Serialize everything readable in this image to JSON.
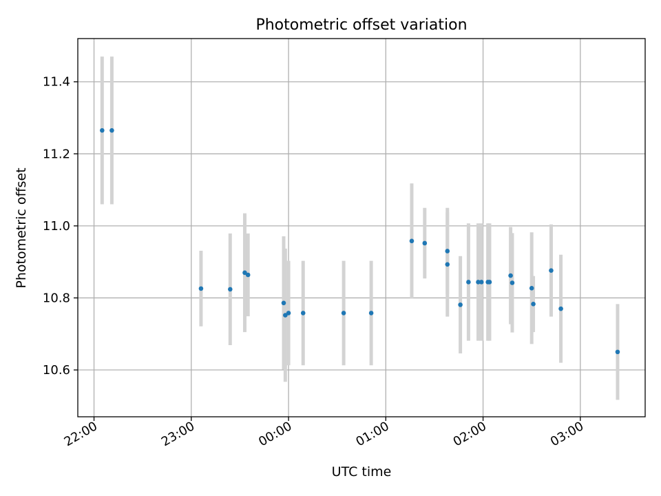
{
  "chart_data": {
    "type": "scatter",
    "title": "Photometric offset variation",
    "xlabel": "UTC time",
    "ylabel": "Photometric offset",
    "x_axis_type": "time",
    "xlim": [
      "21:50",
      "03:40"
    ],
    "ylim": [
      10.47,
      11.52
    ],
    "x_ticks": [
      "22:00",
      "23:00",
      "00:00",
      "01:00",
      "02:00",
      "03:00"
    ],
    "y_ticks": [
      10.6,
      10.8,
      11.0,
      11.2,
      11.4
    ],
    "grid": true,
    "legend": "none",
    "colors": {
      "points": "#1f77b4",
      "errorbars": "#d3d3d3",
      "grid": "#b0b0b0"
    },
    "points": [
      {
        "x": "22:05",
        "y": 11.265,
        "yerr": 0.205
      },
      {
        "x": "22:11",
        "y": 11.265,
        "yerr": 0.205
      },
      {
        "x": "23:06",
        "y": 10.826,
        "yerr": 0.105
      },
      {
        "x": "23:24",
        "y": 10.824,
        "yerr": 0.155
      },
      {
        "x": "23:33",
        "y": 10.87,
        "yerr": 0.165
      },
      {
        "x": "23:35",
        "y": 10.864,
        "yerr": 0.115
      },
      {
        "x": "23:57",
        "y": 10.786,
        "yerr": 0.185
      },
      {
        "x": "23:58",
        "y": 10.752,
        "yerr": 0.185
      },
      {
        "x": "00:00",
        "y": 10.758,
        "yerr": 0.145
      },
      {
        "x": "00:09",
        "y": 10.758,
        "yerr": 0.145
      },
      {
        "x": "00:34",
        "y": 10.758,
        "yerr": 0.145
      },
      {
        "x": "00:51",
        "y": 10.758,
        "yerr": 0.145
      },
      {
        "x": "01:16",
        "y": 10.958,
        "yerr": 0.16
      },
      {
        "x": "01:24",
        "y": 10.952,
        "yerr": 0.098
      },
      {
        "x": "01:38",
        "y": 10.93,
        "yerr": 0.12
      },
      {
        "x": "01:38",
        "y": 10.893,
        "yerr": 0.145
      },
      {
        "x": "01:46",
        "y": 10.781,
        "yerr": 0.135
      },
      {
        "x": "01:51",
        "y": 10.844,
        "yerr": 0.163
      },
      {
        "x": "01:57",
        "y": 10.844,
        "yerr": 0.163
      },
      {
        "x": "01:59",
        "y": 10.844,
        "yerr": 0.163
      },
      {
        "x": "02:03",
        "y": 10.844,
        "yerr": 0.163
      },
      {
        "x": "02:04",
        "y": 10.844,
        "yerr": 0.163
      },
      {
        "x": "02:17",
        "y": 10.862,
        "yerr": 0.135
      },
      {
        "x": "02:18",
        "y": 10.842,
        "yerr": 0.138
      },
      {
        "x": "02:30",
        "y": 10.827,
        "yerr": 0.155
      },
      {
        "x": "02:31",
        "y": 10.783,
        "yerr": 0.078
      },
      {
        "x": "02:42",
        "y": 10.876,
        "yerr": 0.128
      },
      {
        "x": "02:48",
        "y": 10.77,
        "yerr": 0.15
      },
      {
        "x": "03:23",
        "y": 10.65,
        "yerr": 0.133
      }
    ]
  }
}
